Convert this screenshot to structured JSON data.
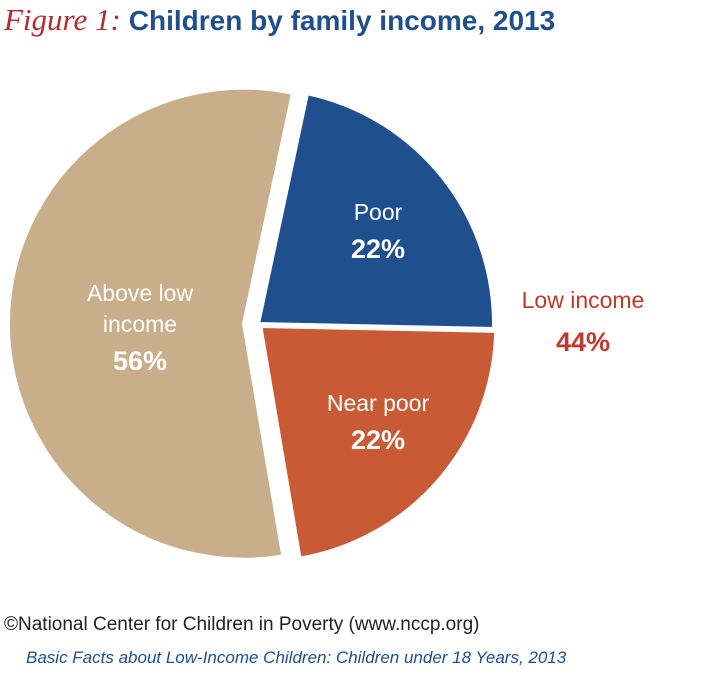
{
  "chart_data": {
    "type": "pie",
    "title_prefix": "Figure 1:",
    "title": "Children by family income, 2013",
    "categories": [
      "Poor",
      "Near poor",
      "Above low income"
    ],
    "values": [
      22,
      22,
      56
    ],
    "value_labels": [
      "22%",
      "22%",
      "56%"
    ],
    "colors": [
      "#1f4f8d",
      "#c95a36",
      "#c8ae8b"
    ],
    "annotation": {
      "label": "Low income",
      "value_label": "44%"
    },
    "credit": "©National Center for Children in Poverty (www.nccp.org)",
    "citation": "Basic Facts about Low-Income Children: Children under 18 Years, 2013"
  }
}
